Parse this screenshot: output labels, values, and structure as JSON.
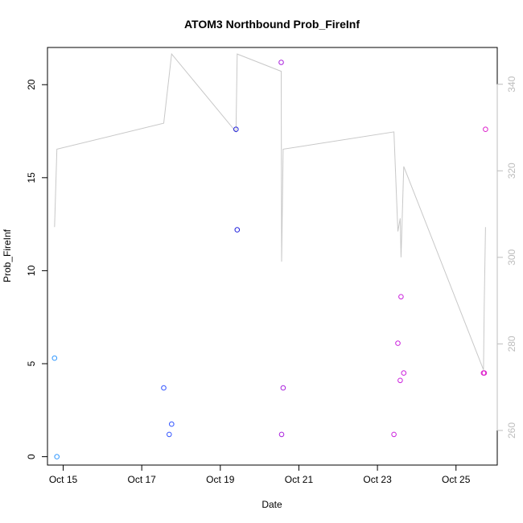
{
  "chart_data": {
    "type": "scatter",
    "title": "ATOM3 Northbound Prob_FireInf",
    "xlabel": "Date",
    "ylabel": "Prob_FireInf",
    "xlim": [
      14.6,
      26.05
    ],
    "ylim": [
      -0.45,
      22.0
    ],
    "y2lim": [
      252.0,
      348.5
    ],
    "x_ticks": [
      15,
      17,
      19,
      21,
      23,
      25
    ],
    "x_tick_labels": [
      "Oct 15",
      "Oct 17",
      "Oct 19",
      "Oct 21",
      "Oct 23",
      "Oct 25"
    ],
    "y_ticks": [
      0,
      5,
      10,
      15,
      20
    ],
    "y_tick_labels": [
      "0",
      "5",
      "10",
      "15",
      "20"
    ],
    "y2_ticks": [
      260,
      280,
      300,
      320,
      340
    ],
    "y2_tick_labels": [
      "260",
      "280",
      "300",
      "320",
      "340"
    ],
    "grid": false,
    "points": [
      {
        "x": 14.78,
        "y": 5.3,
        "color": "#3399ff"
      },
      {
        "x": 14.84,
        "y": 0.0,
        "color": "#3399ff"
      },
      {
        "x": 17.56,
        "y": 3.7,
        "color": "#3355ff"
      },
      {
        "x": 17.7,
        "y": 1.2,
        "color": "#3355ff"
      },
      {
        "x": 17.76,
        "y": 1.75,
        "color": "#3355ff"
      },
      {
        "x": 19.4,
        "y": 17.6,
        "color": "#2222dd"
      },
      {
        "x": 19.43,
        "y": 12.2,
        "color": "#2222dd"
      },
      {
        "x": 20.55,
        "y": 21.2,
        "color": "#aa22dd"
      },
      {
        "x": 20.56,
        "y": 1.2,
        "color": "#aa22dd"
      },
      {
        "x": 20.6,
        "y": 3.7,
        "color": "#aa22dd"
      },
      {
        "x": 23.42,
        "y": 1.2,
        "color": "#cc22dd"
      },
      {
        "x": 23.52,
        "y": 6.1,
        "color": "#cc22dd"
      },
      {
        "x": 23.58,
        "y": 4.1,
        "color": "#cc22dd"
      },
      {
        "x": 23.6,
        "y": 8.6,
        "color": "#cc22dd"
      },
      {
        "x": 23.67,
        "y": 4.5,
        "color": "#cc22dd"
      },
      {
        "x": 25.7,
        "y": 4.5,
        "color": "#dd22cc"
      },
      {
        "x": 25.72,
        "y": 4.5,
        "color": "#dd22cc"
      },
      {
        "x": 25.75,
        "y": 17.6,
        "color": "#dd22cc"
      }
    ],
    "line_series": {
      "axis": "right",
      "color": "#c8c8c8",
      "x": [
        14.78,
        14.84,
        17.56,
        17.76,
        19.4,
        19.43,
        20.55,
        20.56,
        20.6,
        23.42,
        23.52,
        23.58,
        23.6,
        23.67,
        25.7,
        25.72,
        25.75
      ],
      "y": [
        307,
        325,
        331,
        347,
        329,
        347,
        343,
        299,
        325,
        329,
        306,
        309,
        300,
        321,
        274,
        290,
        307
      ]
    }
  }
}
